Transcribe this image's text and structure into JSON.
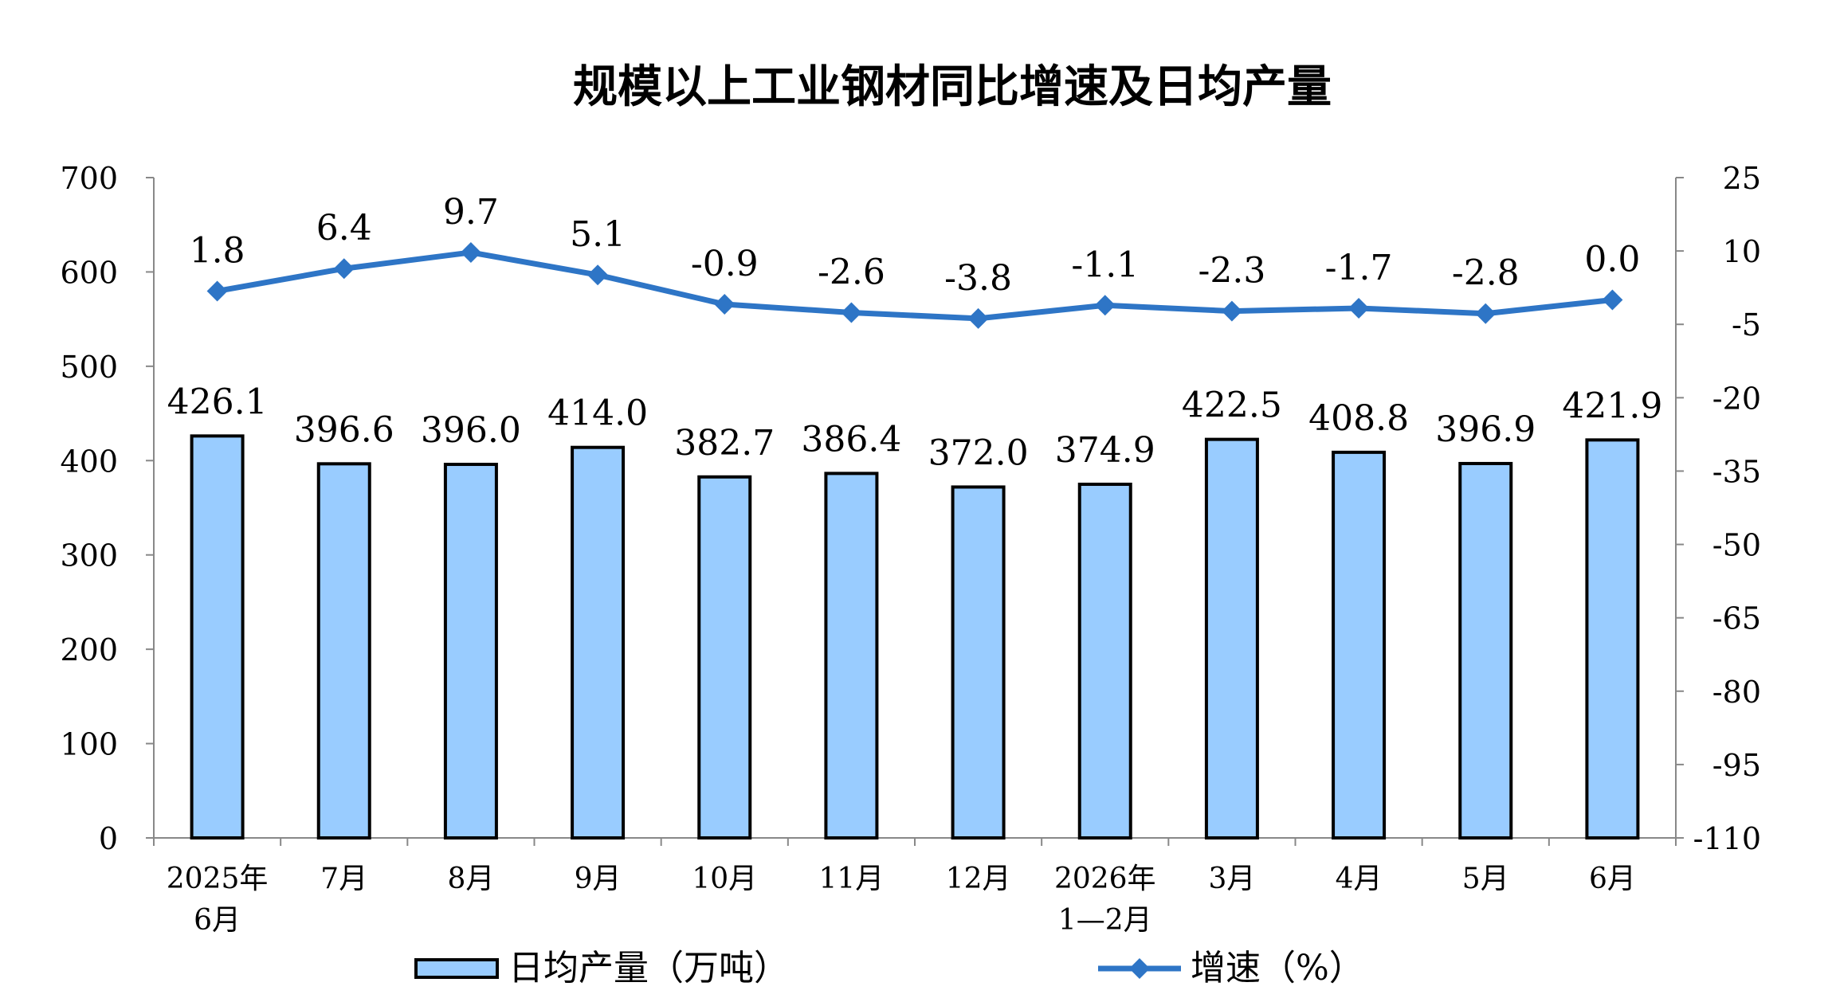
{
  "chart_data": {
    "type": "bar",
    "title": "规模以上工业钢材同比增速及日均产量",
    "categories": [
      [
        "2025年",
        "6月"
      ],
      [
        "7月"
      ],
      [
        "8月"
      ],
      [
        "9月"
      ],
      [
        "10月"
      ],
      [
        "11月"
      ],
      [
        "12月"
      ],
      [
        "2026年",
        "1—2月"
      ],
      [
        "3月"
      ],
      [
        "4月"
      ],
      [
        "5月"
      ],
      [
        "6月"
      ]
    ],
    "series": [
      {
        "name": "日均产量（万吨）",
        "type": "bar",
        "axis": "left",
        "values": [
          426.1,
          396.6,
          396.0,
          414.0,
          382.7,
          386.4,
          372.0,
          374.9,
          422.5,
          408.8,
          396.9,
          421.9
        ],
        "labels": [
          "426.1",
          "396.6",
          "396.0",
          "414.0",
          "382.7",
          "386.4",
          "372.0",
          "374.9",
          "422.5",
          "408.8",
          "396.9",
          "421.9"
        ],
        "color": "#99CCFF"
      },
      {
        "name": "增速（%）",
        "type": "line",
        "axis": "right",
        "marker": "diamond",
        "values": [
          1.8,
          6.4,
          9.7,
          5.1,
          -0.9,
          -2.6,
          -3.8,
          -1.1,
          -2.3,
          -1.7,
          -2.8,
          0.0
        ],
        "labels": [
          "1.8",
          "6.4",
          "9.7",
          "5.1",
          "-0.9",
          "-2.6",
          "-3.8",
          "-1.1",
          "-2.3",
          "-1.7",
          "-2.8",
          "0.0"
        ],
        "color": "#2E75C6"
      }
    ],
    "y_left": {
      "min": 0,
      "max": 700,
      "ticks": [
        0,
        100,
        200,
        300,
        400,
        500,
        600,
        700
      ]
    },
    "y_right": {
      "min": -110,
      "max": 25,
      "ticks": [
        25,
        10,
        -5,
        -20,
        -35,
        -50,
        -65,
        -80,
        -95,
        -110
      ]
    },
    "legend_position": "bottom"
  }
}
